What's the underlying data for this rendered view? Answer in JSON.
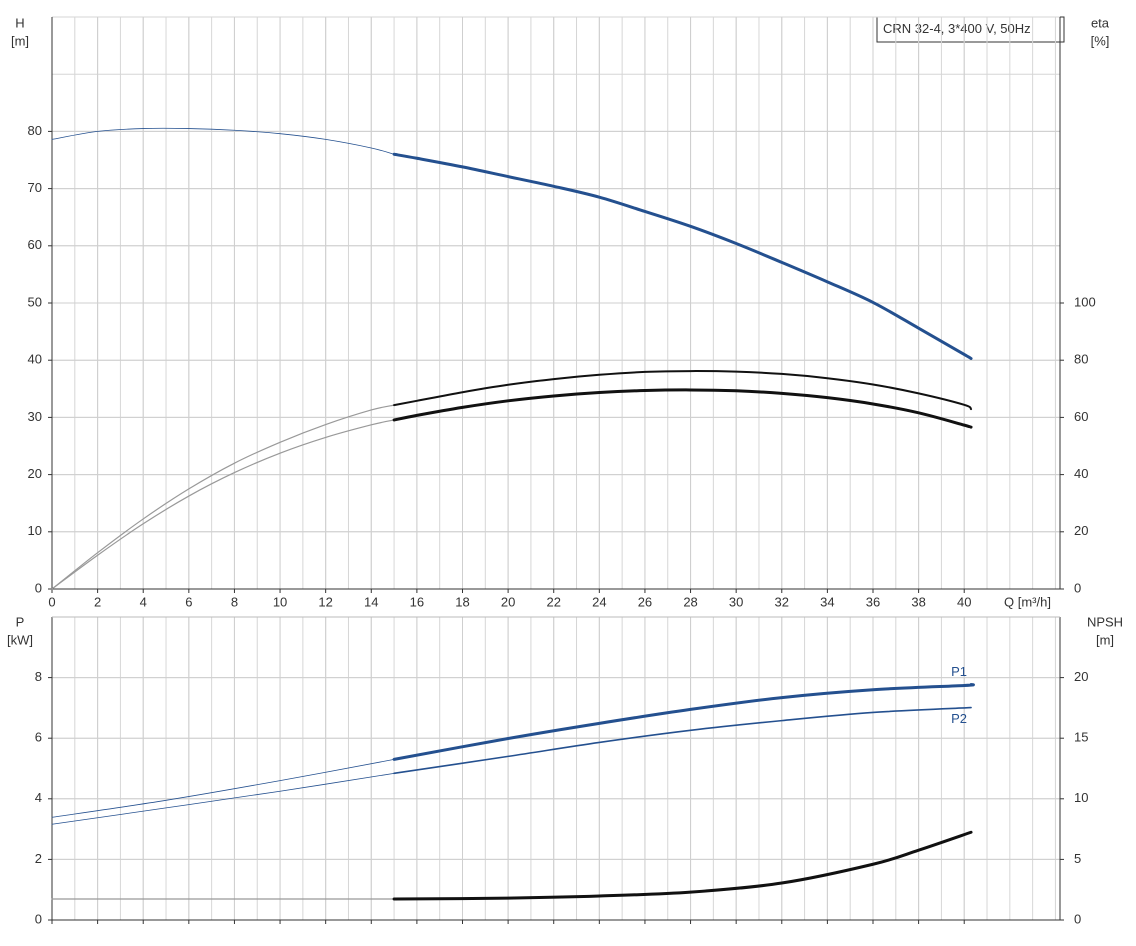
{
  "chart_data": [
    {
      "type": "line",
      "title": "CRN 32-4, 3*400 V, 50Hz",
      "y_label": [
        "H",
        "[m]"
      ],
      "y2_label": [
        "eta",
        "[%]"
      ],
      "x_label": "Q [m³/h]",
      "xlim": [
        0,
        44.2
      ],
      "xticks": [
        0,
        2,
        4,
        6,
        8,
        10,
        12,
        14,
        16,
        18,
        20,
        22,
        24,
        26,
        28,
        30,
        32,
        34,
        36,
        38,
        40
      ],
      "x_minor_step": 1,
      "ygrid_step": 10,
      "xtick_labels": true,
      "ylim": [
        0,
        100
      ],
      "yticks": [
        0,
        10,
        20,
        30,
        40,
        50,
        60,
        70,
        80
      ],
      "y2lim": [
        0,
        200
      ],
      "y2ticks": [
        0,
        20,
        40,
        60,
        80,
        100
      ],
      "grid": true,
      "series": [
        {
          "color": "#24508f",
          "width": 0.8,
          "x": [
            0,
            2,
            4,
            6,
            8,
            10,
            12,
            14,
            15
          ],
          "values": [
            78.6,
            80,
            80.5,
            80.5,
            80.2,
            79.6,
            78.6,
            77.1,
            76.0
          ]
        },
        {
          "color": "#24508f",
          "width": 3,
          "x": [
            15,
            16,
            18,
            20,
            22,
            24,
            26,
            28,
            30,
            32,
            34,
            36,
            38,
            40,
            40.3
          ],
          "values": [
            76.0,
            75.3,
            73.8,
            72.1,
            70.4,
            68.5,
            66.0,
            63.4,
            60.4,
            57.1,
            53.7,
            50.1,
            45.6,
            41.0,
            40.3
          ]
        },
        {
          "color": "#999999",
          "width": 1.2,
          "axis": "y2",
          "x": [
            0,
            2,
            4,
            6,
            8,
            10,
            12,
            14,
            15
          ],
          "values": [
            0,
            12.7,
            24.5,
            35,
            44,
            51.3,
            57.5,
            62.6,
            64.3
          ]
        },
        {
          "color": "#111111",
          "width": 2,
          "axis": "y2",
          "x": [
            15,
            16,
            18,
            20,
            22,
            24,
            26,
            28,
            30,
            32,
            34,
            36,
            38,
            40,
            40.3
          ],
          "values": [
            64.3,
            65.8,
            68.8,
            71.4,
            73.4,
            74.9,
            75.9,
            76.2,
            76.0,
            75.2,
            73.7,
            71.5,
            68.4,
            64.4,
            62.9
          ]
        },
        {
          "color": "#999999",
          "width": 1.2,
          "axis": "y2",
          "x": [
            0,
            2,
            4,
            6,
            8,
            10,
            12,
            14,
            15
          ],
          "values": [
            0,
            11.8,
            22.8,
            32.5,
            40.7,
            47.5,
            53,
            57.4,
            59.1
          ]
        },
        {
          "color": "#111111",
          "width": 3,
          "axis": "y2",
          "x": [
            15,
            16,
            18,
            20,
            22,
            24,
            26,
            28,
            30,
            32,
            34,
            36,
            38,
            40,
            40.3
          ],
          "values": [
            59.1,
            60.7,
            63.5,
            65.8,
            67.5,
            68.7,
            69.4,
            69.6,
            69.3,
            68.4,
            66.9,
            64.7,
            61.6,
            57.3,
            56.6
          ]
        }
      ]
    },
    {
      "type": "line",
      "y_label": [
        "P",
        "[kW]"
      ],
      "y2_label": [
        "NPSH",
        "[m]"
      ],
      "xlim": [
        0,
        44.2
      ],
      "xticks": [
        0,
        2,
        4,
        6,
        8,
        10,
        12,
        14,
        16,
        18,
        20,
        22,
        24,
        26,
        28,
        30,
        32,
        34,
        36,
        38,
        40
      ],
      "x_minor_step": 1,
      "ygrid_step": 2,
      "xtick_labels": false,
      "ylim": [
        0,
        10
      ],
      "yticks": [
        0,
        2,
        4,
        6,
        8
      ],
      "y2lim": [
        0,
        25
      ],
      "y2ticks": [
        0,
        5,
        10,
        15,
        20
      ],
      "grid": true,
      "series": [
        {
          "color": "#24508f",
          "width": 0.8,
          "x": [
            0,
            5,
            10,
            15
          ],
          "values": [
            3.39,
            3.95,
            4.6,
            5.3
          ]
        },
        {
          "name": "P1",
          "color": "#24508f",
          "width": 3,
          "x": [
            15,
            20,
            24,
            28,
            32,
            36,
            40,
            40.3
          ],
          "values": [
            5.3,
            5.99,
            6.49,
            6.95,
            7.34,
            7.6,
            7.74,
            7.77
          ]
        },
        {
          "color": "#24508f",
          "width": 0.8,
          "x": [
            0,
            5,
            10,
            15
          ],
          "values": [
            3.16,
            3.7,
            4.25,
            4.84
          ]
        },
        {
          "name": "P2",
          "color": "#24508f",
          "width": 1.6,
          "x": [
            15,
            20,
            24,
            28,
            32,
            36,
            40.3
          ],
          "values": [
            4.84,
            5.4,
            5.86,
            6.26,
            6.58,
            6.85,
            7.01
          ]
        },
        {
          "color": "#999999",
          "width": 1.2,
          "axis": "y2",
          "x": [
            0,
            15
          ],
          "values": [
            1.73,
            1.73
          ]
        },
        {
          "color": "#111111",
          "width": 3,
          "axis": "y2",
          "x": [
            15,
            20,
            24,
            28,
            32,
            36,
            38,
            40.3
          ],
          "values": [
            1.73,
            1.81,
            1.98,
            2.3,
            3.05,
            4.6,
            5.76,
            7.24
          ]
        }
      ]
    }
  ]
}
